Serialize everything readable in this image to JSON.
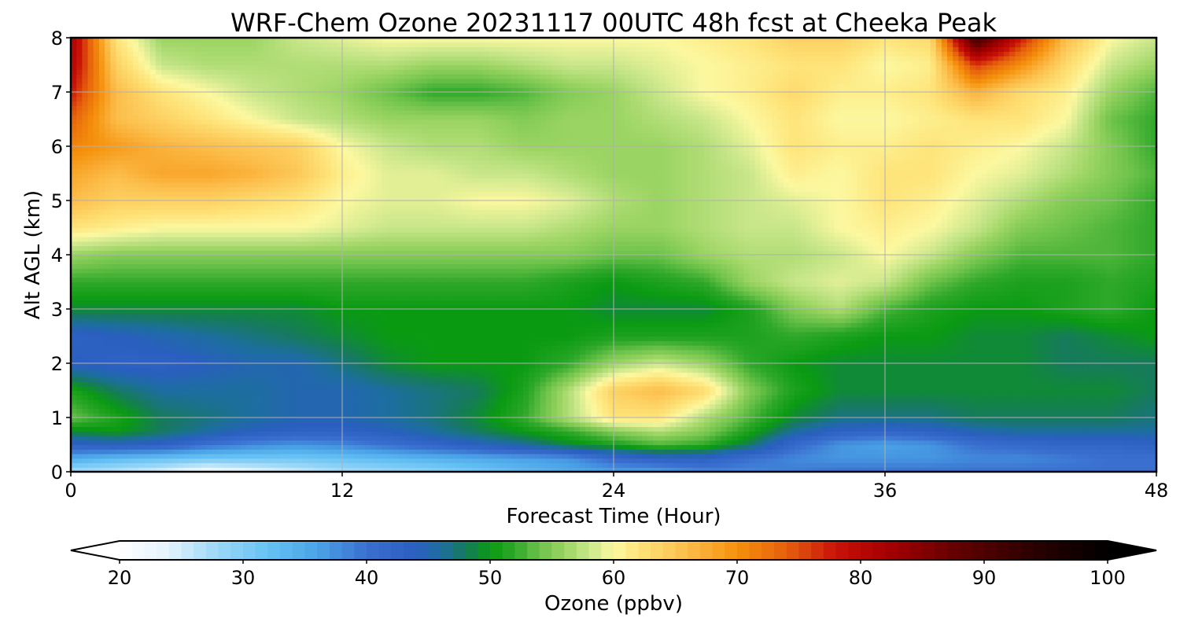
{
  "chart_data": {
    "type": "heatmap",
    "title": "WRF-Chem Ozone  20231117 00UTC 48h fcst at Cheeka Peak",
    "xlabel": "Forecast Time (Hour)",
    "ylabel": "Alt AGL (km)",
    "xlim": [
      0,
      48
    ],
    "ylim": [
      0,
      8
    ],
    "xticks": [
      0,
      12,
      24,
      36,
      48
    ],
    "yticks": [
      0,
      1,
      2,
      3,
      4,
      5,
      6,
      7,
      8
    ],
    "grid": true,
    "colorbar": {
      "label": "Ozone  (ppbv)",
      "range": [
        20,
        100
      ],
      "ticks": [
        20,
        30,
        40,
        50,
        60,
        70,
        80,
        90,
        100
      ],
      "extend": "both",
      "orientation": "horizontal",
      "colors": {
        "20": "#ffffff",
        "24": "#e3f2fc",
        "28": "#9ad6f6",
        "32": "#66c2f4",
        "36": "#4aa3e6",
        "40": "#3a6fd0",
        "44": "#2a5fc0",
        "46": "#1d6ea0",
        "48": "#167a5c",
        "50": "#0a9a12",
        "52": "#2fa82a",
        "54": "#6cc24a",
        "56": "#9ad462",
        "58": "#c8e68a",
        "60": "#fcf8a0",
        "62": "#fee47a",
        "66": "#fcbd4a",
        "70": "#f5900c",
        "74": "#e5600c",
        "78": "#c81208",
        "82": "#a80000",
        "88": "#600000",
        "94": "#2a0000",
        "100": "#000000"
      }
    },
    "x": [
      0,
      2,
      4,
      6,
      8,
      10,
      12,
      14,
      16,
      18,
      20,
      22,
      24,
      26,
      28,
      30,
      32,
      34,
      36,
      38,
      40,
      42,
      44,
      46,
      48
    ],
    "y": [
      0,
      0.25,
      0.5,
      0.75,
      1,
      1.5,
      2,
      2.5,
      3,
      3.5,
      4,
      4.5,
      5,
      5.5,
      6,
      6.5,
      7,
      7.5,
      8
    ],
    "z": [
      [
        27,
        26,
        24,
        21,
        23,
        25,
        27,
        28,
        29,
        31,
        33,
        35,
        36,
        36,
        38,
        38,
        39,
        40,
        40,
        40,
        40,
        40,
        40,
        40,
        40
      ],
      [
        35,
        33,
        32,
        31,
        31,
        31,
        32,
        33,
        34,
        35,
        36,
        37,
        41,
        43,
        43,
        40,
        38,
        37,
        37,
        37,
        38,
        38,
        39,
        40,
        40
      ],
      [
        43,
        44,
        43,
        40,
        38,
        37,
        38,
        40,
        42,
        44,
        46,
        49,
        51,
        53,
        52,
        48,
        41,
        37,
        36,
        37,
        40,
        41,
        42,
        42,
        43
      ],
      [
        49,
        50,
        48,
        46,
        44,
        43,
        43,
        44,
        46,
        48,
        50,
        52,
        55,
        57,
        55,
        51,
        46,
        43,
        42,
        43,
        45,
        46,
        46,
        46,
        46
      ],
      [
        54,
        51,
        48,
        47,
        46,
        45,
        45,
        46,
        47,
        49,
        52,
        57,
        62,
        62,
        57,
        53,
        49,
        47,
        47,
        47,
        48,
        48,
        48,
        48,
        47
      ],
      [
        51,
        48,
        46,
        46,
        46,
        45,
        45,
        46,
        47,
        48,
        51,
        57,
        64,
        66,
        63,
        55,
        51,
        49,
        49,
        49,
        49,
        49,
        49,
        49,
        48
      ],
      [
        44,
        43,
        43,
        44,
        45,
        45,
        47,
        49,
        50,
        50,
        50,
        52,
        56,
        58,
        56,
        52,
        50,
        49,
        49,
        49,
        49,
        49,
        48,
        48,
        48
      ],
      [
        43,
        44,
        45,
        46,
        47,
        48,
        49,
        50,
        50,
        50,
        50,
        50,
        51,
        51,
        51,
        51,
        52,
        51,
        50,
        50,
        49,
        49,
        48,
        49,
        50
      ],
      [
        49,
        49,
        49,
        49,
        49,
        49,
        50,
        50,
        50,
        50,
        50,
        50,
        49,
        49,
        49,
        51,
        55,
        57,
        53,
        51,
        50,
        50,
        51,
        52,
        50
      ],
      [
        52,
        52,
        52,
        52,
        52,
        52,
        52,
        52,
        52,
        52,
        52,
        51,
        50,
        51,
        52,
        56,
        58,
        59,
        58,
        54,
        52,
        51,
        51,
        52,
        51
      ],
      [
        56,
        55,
        55,
        55,
        55,
        55,
        55,
        55,
        55,
        55,
        55,
        55,
        54,
        54,
        56,
        57,
        57,
        58,
        60,
        58,
        55,
        53,
        53,
        53,
        52
      ],
      [
        62,
        61,
        60,
        60,
        60,
        60,
        59,
        58,
        58,
        58,
        58,
        57,
        56,
        56,
        57,
        58,
        58,
        60,
        61,
        60,
        58,
        55,
        54,
        53,
        52
      ],
      [
        66,
        64,
        64,
        64,
        63,
        62,
        60,
        59,
        59,
        60,
        60,
        59,
        57,
        56,
        57,
        58,
        59,
        60,
        62,
        61,
        59,
        57,
        55,
        54,
        52
      ],
      [
        68,
        66,
        68,
        68,
        67,
        65,
        61,
        59,
        59,
        58,
        58,
        57,
        56,
        56,
        57,
        58,
        61,
        60,
        62,
        62,
        60,
        59,
        57,
        55,
        53
      ],
      [
        71,
        69,
        67,
        66,
        65,
        64,
        60,
        58,
        57,
        57,
        56,
        56,
        56,
        56,
        57,
        59,
        62,
        61,
        61,
        62,
        61,
        60,
        58,
        55,
        52
      ],
      [
        74,
        66,
        64,
        62,
        60,
        58,
        57,
        56,
        56,
        56,
        55,
        56,
        56,
        57,
        58,
        60,
        62,
        60,
        60,
        61,
        62,
        62,
        60,
        54,
        52
      ],
      [
        78,
        66,
        62,
        60,
        58,
        57,
        56,
        54,
        52,
        52,
        53,
        55,
        56,
        58,
        60,
        61,
        63,
        61,
        61,
        62,
        67,
        63,
        61,
        56,
        53
      ],
      [
        81,
        64,
        58,
        57,
        57,
        57,
        57,
        57,
        56,
        56,
        57,
        58,
        58,
        59,
        60,
        61,
        62,
        62,
        60,
        61,
        76,
        70,
        63,
        58,
        56
      ],
      [
        82,
        62,
        56,
        56,
        56,
        58,
        59,
        60,
        60,
        60,
        60,
        60,
        60,
        60,
        61,
        62,
        64,
        64,
        62,
        63,
        92,
        78,
        66,
        60,
        58
      ]
    ]
  }
}
